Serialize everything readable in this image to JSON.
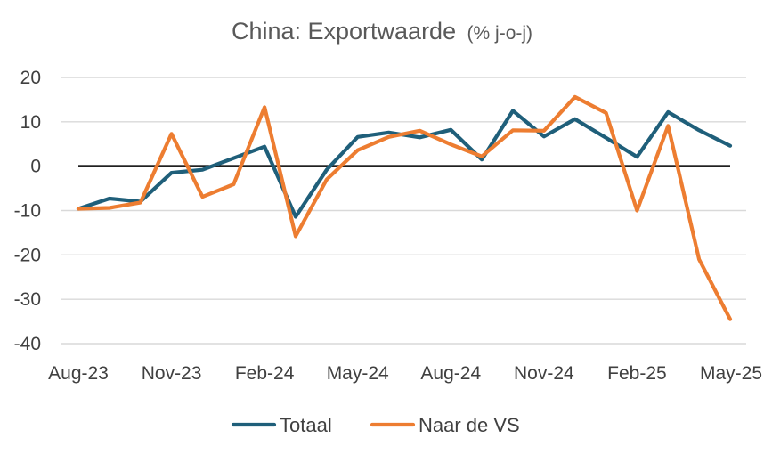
{
  "chart_data": {
    "type": "line",
    "title": "China: Exportwaarde",
    "title_unit": "(% j-o-j)",
    "xlabel": "",
    "ylabel": "",
    "ylim": [
      -40,
      20
    ],
    "yticks": [
      20,
      10,
      0,
      -10,
      -20,
      -30,
      -40
    ],
    "grid": true,
    "legend_position": "bottom",
    "x": [
      "Aug-23",
      "Sep-23",
      "Oct-23",
      "Nov-23",
      "Dec-23",
      "Jan-24",
      "Feb-24",
      "Mar-24",
      "Apr-24",
      "May-24",
      "Jun-24",
      "Jul-24",
      "Aug-24",
      "Sep-24",
      "Oct-24",
      "Nov-24",
      "Dec-24",
      "Jan-25",
      "Feb-25",
      "Mar-25",
      "Apr-25",
      "May-25"
    ],
    "x_tick_labels": [
      "Aug-23",
      "Nov-23",
      "Feb-24",
      "May-24",
      "Aug-24",
      "Nov-24",
      "Feb-25",
      "May-25"
    ],
    "series": [
      {
        "name": "Totaal",
        "color": "#1f5f7a",
        "values": [
          -9.6,
          -7.3,
          -8.0,
          -1.5,
          -0.8,
          1.8,
          4.4,
          -11.4,
          -0.8,
          6.6,
          7.6,
          6.5,
          8.2,
          1.5,
          12.5,
          6.7,
          10.6,
          6.4,
          2.1,
          12.2,
          8.1,
          4.6
        ]
      },
      {
        "name": "Naar de VS",
        "color": "#ed7d31",
        "values": [
          -9.6,
          -9.4,
          -8.2,
          7.3,
          -6.9,
          -4.1,
          13.3,
          -15.8,
          -3.0,
          3.6,
          6.6,
          8.0,
          4.9,
          2.2,
          8.1,
          8.0,
          15.6,
          12.0,
          -10.0,
          9.1,
          -21.0,
          -34.5
        ]
      }
    ]
  }
}
